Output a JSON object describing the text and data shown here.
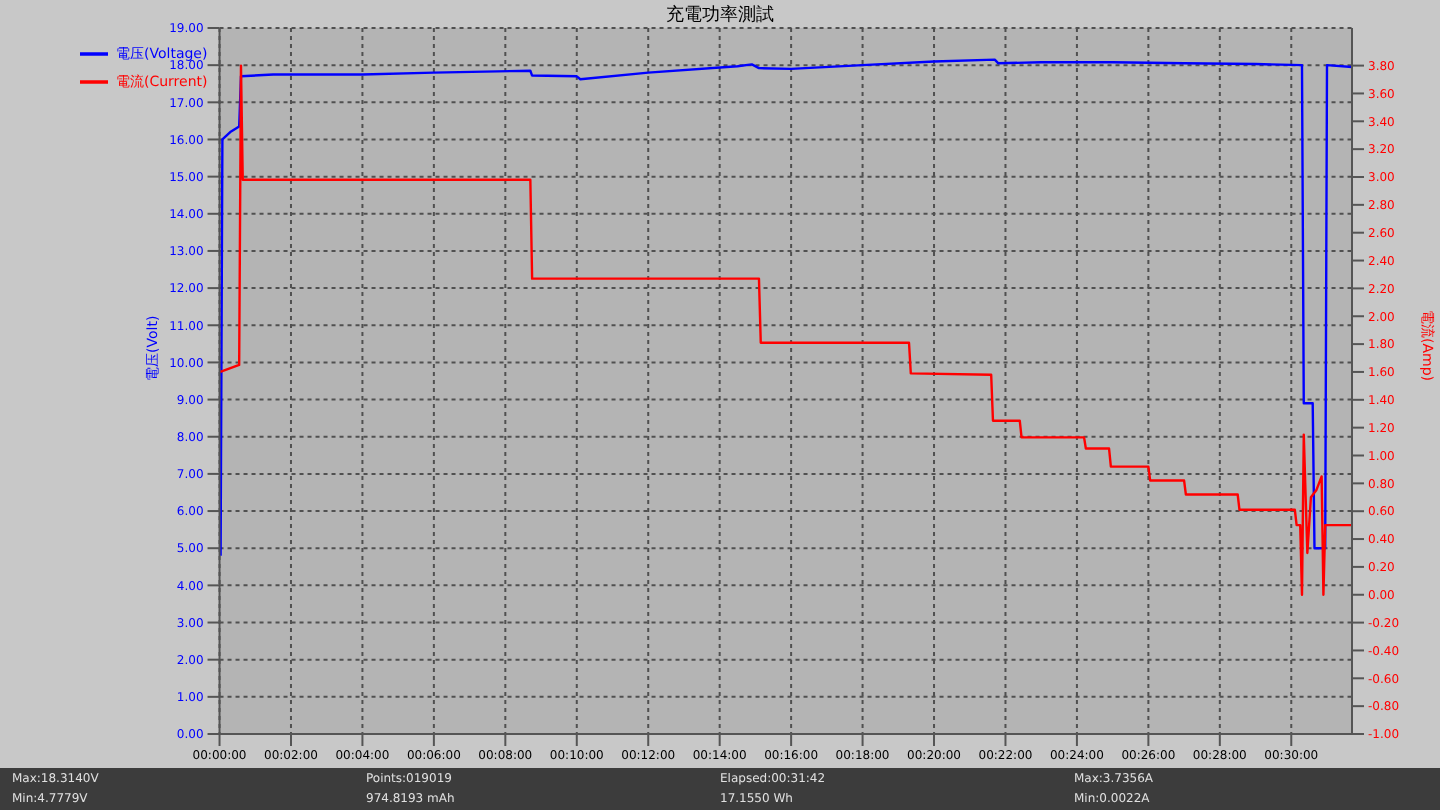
{
  "chart_data": {
    "type": "line",
    "title": "充電功率測試",
    "ylabel": "電压(Volt)",
    "y2label": "電流(Amp)",
    "xlim": [
      0,
      31.7
    ],
    "xticks": [
      {
        "value": 0,
        "label": "00:00:00"
      },
      {
        "value": 2,
        "label": "00:02:00"
      },
      {
        "value": 4,
        "label": "00:04:00"
      },
      {
        "value": 6,
        "label": "00:06:00"
      },
      {
        "value": 8,
        "label": "00:08:00"
      },
      {
        "value": 10,
        "label": "00:10:00"
      },
      {
        "value": 12,
        "label": "00:12:00"
      },
      {
        "value": 14,
        "label": "00:14:00"
      },
      {
        "value": 16,
        "label": "00:16:00"
      },
      {
        "value": 18,
        "label": "00:18:00"
      },
      {
        "value": 20,
        "label": "00:20:00"
      },
      {
        "value": 22,
        "label": "00:22:00"
      },
      {
        "value": 24,
        "label": "00:24:00"
      },
      {
        "value": 26,
        "label": "00:26:00"
      },
      {
        "value": 28,
        "label": "00:28:00"
      },
      {
        "value": 30,
        "label": "00:30:00"
      }
    ],
    "ylim": [
      0,
      19
    ],
    "yticks": [
      {
        "value": 0,
        "label": "0.00"
      },
      {
        "value": 1,
        "label": "1.00"
      },
      {
        "value": 2,
        "label": "2.00"
      },
      {
        "value": 3,
        "label": "3.00"
      },
      {
        "value": 4,
        "label": "4.00"
      },
      {
        "value": 5,
        "label": "5.00"
      },
      {
        "value": 6,
        "label": "6.00"
      },
      {
        "value": 7,
        "label": "7.00"
      },
      {
        "value": 8,
        "label": "8.00"
      },
      {
        "value": 9,
        "label": "9.00"
      },
      {
        "value": 10,
        "label": "10.00"
      },
      {
        "value": 11,
        "label": "11.00"
      },
      {
        "value": 12,
        "label": "12.00"
      },
      {
        "value": 13,
        "label": "13.00"
      },
      {
        "value": 14,
        "label": "14.00"
      },
      {
        "value": 15,
        "label": "15.00"
      },
      {
        "value": 16,
        "label": "16.00"
      },
      {
        "value": 17,
        "label": "17.00"
      },
      {
        "value": 18,
        "label": "18.00"
      },
      {
        "value": 19,
        "label": "19.00"
      }
    ],
    "y2lim": [
      -1,
      4.07
    ],
    "y2ticks": [
      {
        "value": -1,
        "label": "-1.00"
      },
      {
        "value": -0.8,
        "label": "-0.80"
      },
      {
        "value": -0.6,
        "label": "-0.60"
      },
      {
        "value": -0.4,
        "label": "-0.40"
      },
      {
        "value": -0.2,
        "label": "-0.20"
      },
      {
        "value": 0,
        "label": "0.00"
      },
      {
        "value": 0.2,
        "label": "0.20"
      },
      {
        "value": 0.4,
        "label": "0.40"
      },
      {
        "value": 0.6,
        "label": "0.60"
      },
      {
        "value": 0.8,
        "label": "0.80"
      },
      {
        "value": 1,
        "label": "1.00"
      },
      {
        "value": 1.2,
        "label": "1.20"
      },
      {
        "value": 1.4,
        "label": "1.40"
      },
      {
        "value": 1.6,
        "label": "1.60"
      },
      {
        "value": 1.8,
        "label": "1.80"
      },
      {
        "value": 2,
        "label": "2.00"
      },
      {
        "value": 2.2,
        "label": "2.20"
      },
      {
        "value": 2.4,
        "label": "2.40"
      },
      {
        "value": 2.6,
        "label": "2.60"
      },
      {
        "value": 2.8,
        "label": "2.80"
      },
      {
        "value": 3,
        "label": "3.00"
      },
      {
        "value": 3.2,
        "label": "3.20"
      },
      {
        "value": 3.4,
        "label": "3.40"
      },
      {
        "value": 3.6,
        "label": "3.60"
      },
      {
        "value": 3.8,
        "label": "3.80"
      }
    ],
    "grid": true,
    "legend": "top left",
    "marker": "none",
    "line_style": "solid",
    "series": [
      {
        "name": "電压(Voltage)",
        "color": "#0000ff",
        "x": [
          0.03,
          0.08,
          0.3,
          0.55,
          0.6,
          1.5,
          4,
          6,
          8.7,
          8.75,
          10,
          10.1,
          12,
          14.5,
          14.9,
          15.1,
          16,
          18,
          20,
          21.7,
          21.8,
          23,
          25,
          27,
          29,
          30.3,
          30.35,
          30.6,
          30.65,
          30.95,
          31,
          31.7
        ],
        "values": [
          4.8,
          16.0,
          16.2,
          16.35,
          17.7,
          17.75,
          17.75,
          17.8,
          17.85,
          17.72,
          17.7,
          17.62,
          17.8,
          17.97,
          18.02,
          17.92,
          17.9,
          18.0,
          18.1,
          18.15,
          18.05,
          18.08,
          18.08,
          18.05,
          18.03,
          18.0,
          8.9,
          8.9,
          5.0,
          5.0,
          18.0,
          17.95
        ]
      },
      {
        "name": "電流(Current)",
        "color": "#ff0000",
        "axis": "y2",
        "x": [
          0.02,
          0.55,
          0.6,
          0.65,
          8.7,
          8.75,
          15.1,
          15.15,
          19.3,
          19.35,
          21.6,
          21.65,
          22.4,
          22.45,
          24.2,
          24.25,
          24.9,
          24.95,
          26.0,
          26.05,
          27.0,
          27.05,
          28.5,
          28.55,
          30.1,
          30.15,
          30.25,
          30.3,
          30.35,
          30.45,
          30.55,
          30.7,
          30.85,
          30.9,
          30.95,
          31.7
        ],
        "values": [
          1.6,
          1.65,
          3.8,
          2.98,
          2.98,
          2.27,
          2.27,
          1.81,
          1.81,
          1.59,
          1.58,
          1.25,
          1.25,
          1.13,
          1.13,
          1.05,
          1.05,
          0.92,
          0.92,
          0.82,
          0.82,
          0.72,
          0.72,
          0.61,
          0.61,
          0.5,
          0.5,
          0.0,
          1.15,
          0.3,
          0.7,
          0.75,
          0.85,
          0.0,
          0.5,
          0.5
        ]
      }
    ],
    "annotations": [
      "Max:18.3140V",
      "Points:019019",
      "Elapsed:00:31:42",
      "Max:3.7356A",
      "Min:4.7779V",
      "974.8193 mAh",
      "17.1550 Wh",
      "Min:0.0022A"
    ]
  }
}
